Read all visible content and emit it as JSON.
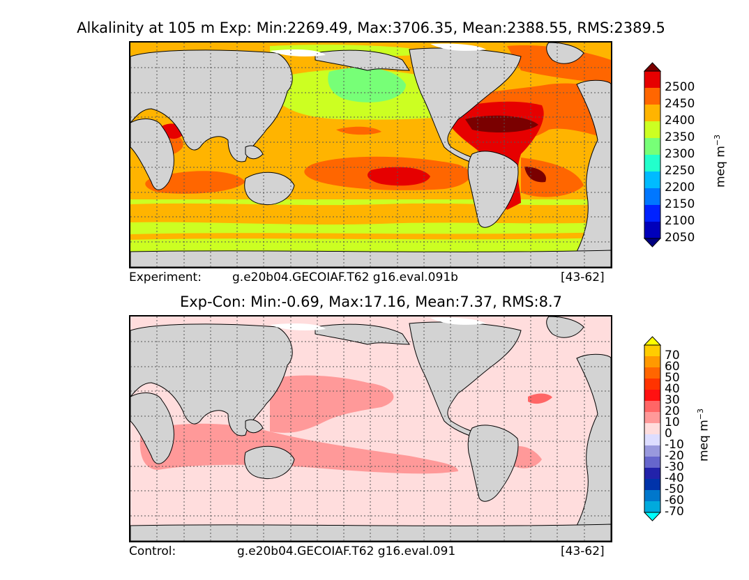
{
  "top_panel": {
    "title": "Alkalinity at 105 m Exp: Min:2269.49, Max:3706.35, Mean:2388.55, RMS:2389.5",
    "footer_left": "Experiment:",
    "footer_case": "g.e20b04.GECOIAF.T62 g16.eval.091b",
    "footer_years": "[43-62]",
    "colorbar": {
      "unit": "meq m",
      "unit_exp": "−3",
      "ticks": [
        "2500",
        "2450",
        "2400",
        "2350",
        "2300",
        "2250",
        "2200",
        "2150",
        "2100",
        "2050"
      ],
      "colors": [
        "#7a0000",
        "#e60000",
        "#ff6600",
        "#ffb400",
        "#ccff22",
        "#77ff77",
        "#22ffcc",
        "#00bbff",
        "#0077ff",
        "#0022ff",
        "#0000bb",
        "#000080"
      ]
    }
  },
  "bottom_panel": {
    "title": "Exp-Con: Min:-0.69, Max:17.16, Mean:7.37, RMS:8.7",
    "footer_left": "Control:",
    "footer_case": "g.e20b04.GECOIAF.T62 g16.eval.091",
    "footer_years": "[43-62]",
    "colorbar": {
      "unit": "meq m",
      "unit_exp": "−3",
      "ticks": [
        "70",
        "60",
        "50",
        "40",
        "30",
        "20",
        "10",
        "0",
        "-10",
        "-20",
        "-30",
        "-40",
        "-50",
        "-60",
        "-70"
      ],
      "colors": [
        "#ffff00",
        "#ffcc00",
        "#ff9900",
        "#ff6600",
        "#ff3300",
        "#ff1111",
        "#ff6666",
        "#ff9999",
        "#ffdddd",
        "#ddddff",
        "#9999dd",
        "#6666cc",
        "#2222aa",
        "#0033aa",
        "#0077cc",
        "#00aadd",
        "#00ffff"
      ]
    }
  },
  "colors": {
    "land": "#d3d3d3",
    "ice": "#ffffff"
  }
}
